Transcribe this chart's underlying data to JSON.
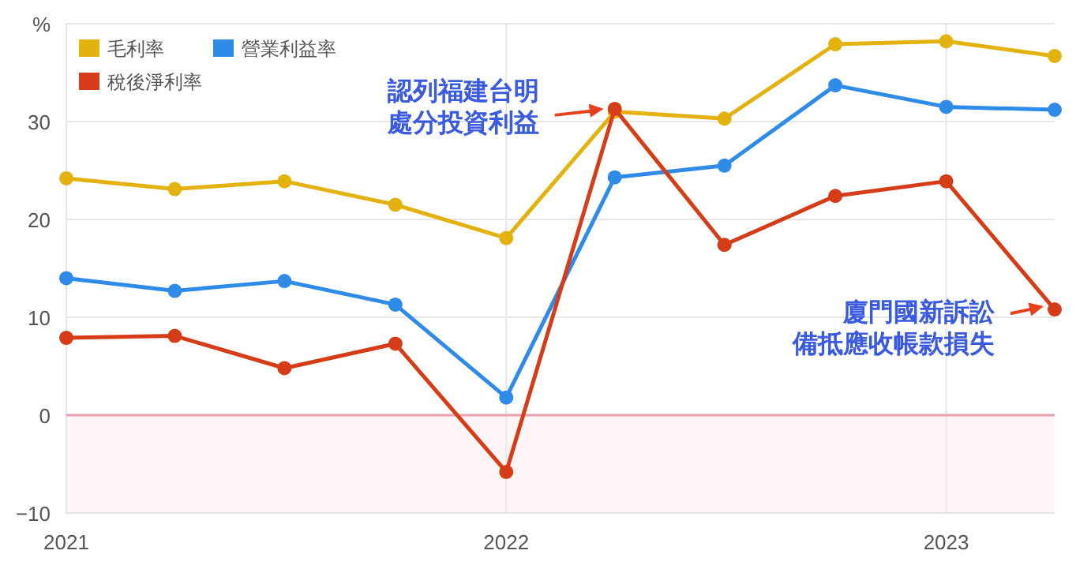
{
  "chart_data": {
    "type": "line",
    "x": [
      "2021-01",
      "2021-04",
      "2021-07",
      "2021-10",
      "2022-01",
      "2022-04",
      "2022-07",
      "2022-10",
      "2023-01",
      "2023-04"
    ],
    "series": [
      {
        "name": "毛利率",
        "color": "#e3b20f",
        "values": [
          24.2,
          23.1,
          23.9,
          21.5,
          18.1,
          31.0,
          30.3,
          37.9,
          38.2,
          36.7
        ]
      },
      {
        "name": "營業利益率",
        "color": "#2f8be8",
        "values": [
          14.0,
          12.7,
          13.7,
          11.3,
          1.8,
          24.3,
          25.5,
          33.7,
          31.5,
          31.2
        ]
      },
      {
        "name": "稅後淨利率",
        "color": "#d63c17",
        "values": [
          7.9,
          8.1,
          4.8,
          7.3,
          -5.8,
          31.3,
          17.4,
          22.4,
          23.9,
          10.8
        ]
      }
    ],
    "xlim": [
      "2021-01",
      "2023-04"
    ],
    "xticks": [
      {
        "value": "2021-01",
        "label": "2021"
      },
      {
        "value": "2022-01",
        "label": "2022"
      },
      {
        "value": "2023-01",
        "label": "2023"
      }
    ],
    "ylim": [
      -10,
      40
    ],
    "yticks": [
      -10,
      0,
      10,
      20,
      30,
      {
        "value": 40,
        "label": "%"
      }
    ],
    "ref_lines": [
      {
        "axis": "y",
        "value": 0,
        "color": "#e8a0b0"
      }
    ],
    "bands": [
      {
        "axis": "y",
        "from": -10,
        "to": 0,
        "color": "#fff4f6"
      }
    ],
    "annotations": [
      {
        "text": "認列福建台明處分投資利益",
        "x": "2022-04",
        "y": 31.3
      },
      {
        "text": "廈門國新訴訟備抵應收帳款損失",
        "x": "2023-04",
        "y": 10.8
      }
    ],
    "grid": true,
    "legend": "top left",
    "marker": "circle",
    "line_style": "solid"
  }
}
